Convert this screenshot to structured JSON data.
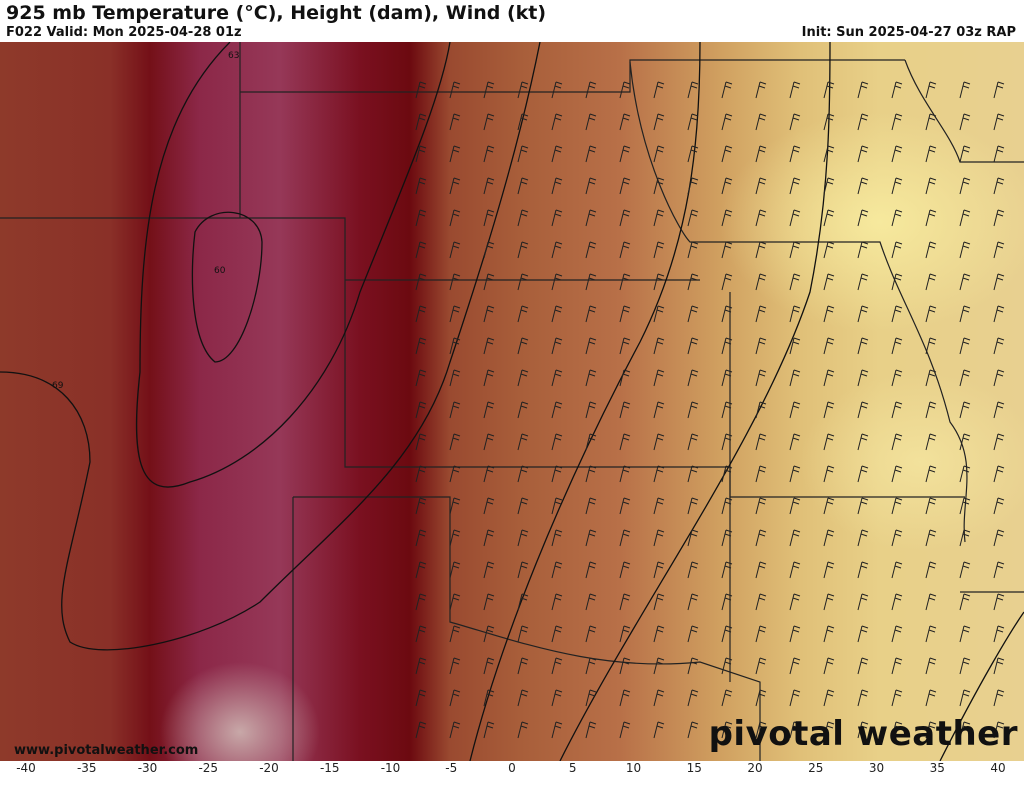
{
  "header": {
    "title": "925 mb Temperature (°C), Height (dam), Wind (kt)",
    "valid": "F022 Valid: Mon 2025-04-28 01z",
    "init": "Init: Sun 2025-04-27 03z RAP"
  },
  "map": {
    "contour_labels": [
      "63",
      "60",
      "69"
    ],
    "watermark": "www.pivotalweather.com",
    "logo": "pivotal weather"
  },
  "colorbar": {
    "ticks": [
      "-40",
      "-35",
      "-30",
      "-25",
      "-20",
      "-15",
      "-10",
      "-5",
      "0",
      "5",
      "10",
      "15",
      "20",
      "25",
      "30",
      "35",
      "40"
    ],
    "range": [
      -40,
      40
    ],
    "unit": "°C"
  }
}
